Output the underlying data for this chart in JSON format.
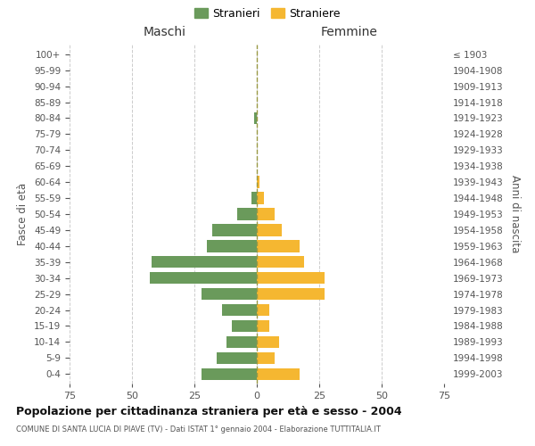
{
  "age_groups": [
    "0-4",
    "5-9",
    "10-14",
    "15-19",
    "20-24",
    "25-29",
    "30-34",
    "35-39",
    "40-44",
    "45-49",
    "50-54",
    "55-59",
    "60-64",
    "65-69",
    "70-74",
    "75-79",
    "80-84",
    "85-89",
    "90-94",
    "95-99",
    "100+"
  ],
  "birth_years": [
    "1999-2003",
    "1994-1998",
    "1989-1993",
    "1984-1988",
    "1979-1983",
    "1974-1978",
    "1969-1973",
    "1964-1968",
    "1959-1963",
    "1954-1958",
    "1949-1953",
    "1944-1948",
    "1939-1943",
    "1934-1938",
    "1929-1933",
    "1924-1928",
    "1919-1923",
    "1914-1918",
    "1909-1913",
    "1904-1908",
    "≤ 1903"
  ],
  "males": [
    22,
    16,
    12,
    10,
    14,
    22,
    43,
    42,
    20,
    18,
    8,
    2,
    0,
    0,
    0,
    0,
    1,
    0,
    0,
    0,
    0
  ],
  "females": [
    17,
    7,
    9,
    5,
    5,
    27,
    27,
    19,
    17,
    10,
    7,
    3,
    1,
    0,
    0,
    0,
    0,
    0,
    0,
    0,
    0
  ],
  "male_color": "#6a9a5b",
  "female_color": "#f5b731",
  "title": "Popolazione per cittadinanza straniera per età e sesso - 2004",
  "subtitle": "COMUNE DI SANTA LUCIA DI PIAVE (TV) - Dati ISTAT 1° gennaio 2004 - Elaborazione TUTTITALIA.IT",
  "legend_male": "Stranieri",
  "legend_female": "Straniere",
  "xlabel_left": "Maschi",
  "xlabel_right": "Femmine",
  "ylabel_left": "Fasce di età",
  "ylabel_right": "Anni di nascita",
  "xlim": 75,
  "background_color": "#ffffff",
  "grid_color": "#cccccc"
}
